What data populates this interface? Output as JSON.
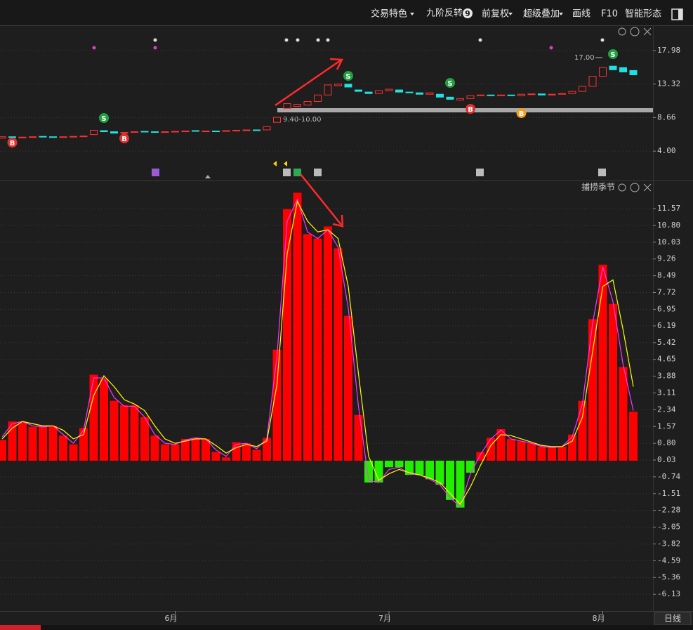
{
  "toolbar": {
    "items": [
      "交易特色",
      "九阶反转",
      "前复权",
      "超级叠加",
      "画线",
      "F10",
      "智能形态"
    ],
    "badge": "9"
  },
  "chart_data": [
    {
      "type": "candlestick",
      "open": [
        5.8,
        6.0,
        5.85,
        5.95,
        6.05,
        6.0,
        5.9,
        6.0,
        6.05,
        6.3,
        6.85,
        6.7,
        6.5,
        6.6,
        6.75,
        6.7,
        6.65,
        6.7,
        6.75,
        6.85,
        6.75,
        6.8,
        6.75,
        6.85,
        6.9,
        6.95,
        6.95,
        8.0,
        9.9,
        10.2,
        10.4,
        10.9,
        11.8,
        13.1,
        13.3,
        12.5,
        12.2,
        12.0,
        12.4,
        12.5,
        12.2,
        12.1,
        11.9,
        11.9,
        11.5,
        11.1,
        11.3,
        11.7,
        11.8,
        11.7,
        11.8,
        11.7,
        11.9,
        11.95,
        11.8,
        11.9,
        12.0,
        12.3,
        13.0,
        14.4,
        15.8,
        15.6,
        15.2
      ],
      "close": [
        6.0,
        5.9,
        5.95,
        6.0,
        6.0,
        5.95,
        6.0,
        6.05,
        6.1,
        6.9,
        6.7,
        6.5,
        6.6,
        6.7,
        6.7,
        6.65,
        6.7,
        6.75,
        6.8,
        6.8,
        6.8,
        6.75,
        6.85,
        6.9,
        6.95,
        6.9,
        7.4,
        8.7,
        10.6,
        10.5,
        10.9,
        11.8,
        13.2,
        13.3,
        12.9,
        12.3,
        12.0,
        12.4,
        12.6,
        12.2,
        12.1,
        11.9,
        12.1,
        11.5,
        11.2,
        11.3,
        11.7,
        11.8,
        11.7,
        11.8,
        11.7,
        11.9,
        11.95,
        11.8,
        11.9,
        12.0,
        12.3,
        13.0,
        14.4,
        15.6,
        15.3,
        15.0,
        14.6
      ],
      "up_color": "#ff3030",
      "down_color": "#22e0e0",
      "ylim": [
        0.12,
        21.38
      ],
      "yticks": [
        17.98,
        13.32,
        8.66,
        {
          "value": 4,
          "label": "4.00"
        }
      ],
      "grid": true,
      "annotations": [
        "17.00",
        "9.40-10.00"
      ],
      "signals": [
        "B",
        "S",
        "B",
        "S",
        "S",
        "B",
        "B",
        "S"
      ]
    },
    {
      "type": "bar",
      "title": "捕捞季节",
      "categories": [
        null,
        null,
        null,
        null,
        null,
        null,
        null,
        null,
        null,
        null,
        null,
        null,
        null,
        null,
        null,
        null,
        null,
        "6月",
        null,
        null,
        null,
        null,
        null,
        null,
        null,
        null,
        null,
        null,
        null,
        null,
        null,
        null,
        null,
        null,
        null,
        null,
        null,
        null,
        "7月",
        null,
        null,
        null,
        null,
        null,
        null,
        null,
        null,
        null,
        null,
        null,
        null,
        null,
        null,
        null,
        null,
        null,
        null,
        null,
        null,
        "8月",
        null,
        null,
        null
      ],
      "values": [
        0.95,
        1.8,
        1.8,
        1.55,
        1.6,
        1.6,
        1.15,
        0.75,
        1.5,
        3.95,
        3.75,
        2.75,
        2.55,
        2.55,
        2.0,
        1.15,
        0.75,
        0.75,
        1.0,
        1.05,
        1.0,
        0.4,
        0.15,
        0.85,
        0.8,
        0.5,
        1.05,
        5.1,
        11.55,
        12.3,
        10.4,
        10.2,
        10.75,
        9.75,
        6.65,
        2.1,
        -1.0,
        -1.0,
        -0.3,
        -0.3,
        -0.65,
        -0.65,
        -0.85,
        -1.1,
        -1.8,
        -2.15,
        -0.55,
        0.4,
        1.05,
        1.45,
        1.0,
        0.9,
        0.8,
        0.65,
        0.6,
        0.65,
        1.2,
        2.75,
        6.5,
        9.0,
        7.2,
        4.3,
        2.25
      ],
      "positive_color": "#ff0000",
      "negative_color": "#22ee00",
      "series": [
        {
          "color": "#ff33ff",
          "values": [
            1.1,
            1.7,
            1.8,
            1.6,
            1.55,
            1.6,
            1.2,
            0.8,
            1.4,
            3.8,
            3.8,
            2.9,
            2.5,
            2.5,
            2.0,
            1.2,
            0.8,
            0.75,
            0.95,
            1.05,
            1.0,
            0.5,
            0.2,
            0.75,
            0.8,
            0.55,
            1.0,
            4.8,
            11.0,
            12.0,
            10.5,
            10.2,
            10.6,
            9.8,
            7.0,
            2.5,
            -0.9,
            -1.0,
            -0.4,
            -0.3,
            -0.6,
            -0.65,
            -0.85,
            -1.1,
            -1.7,
            -2.1,
            -0.6,
            0.3,
            1.0,
            1.4,
            1.0,
            0.9,
            0.8,
            0.65,
            0.6,
            0.65,
            1.1,
            2.6,
            6.3,
            8.9,
            7.3,
            4.4,
            2.3
          ]
        },
        {
          "color": "#ffff00",
          "values": [
            1.0,
            1.5,
            1.8,
            1.7,
            1.6,
            1.6,
            1.4,
            1.0,
            1.2,
            3.0,
            3.9,
            3.4,
            2.8,
            2.6,
            2.3,
            1.6,
            1.0,
            0.8,
            0.9,
            1.0,
            1.0,
            0.7,
            0.35,
            0.6,
            0.75,
            0.65,
            0.9,
            3.5,
            9.5,
            11.9,
            11.0,
            10.5,
            10.6,
            10.2,
            8.0,
            4.0,
            0.2,
            -0.9,
            -0.6,
            -0.4,
            -0.55,
            -0.65,
            -0.8,
            -1.0,
            -1.5,
            -2.0,
            -1.2,
            -0.2,
            0.7,
            1.2,
            1.15,
            1.0,
            0.85,
            0.7,
            0.65,
            0.65,
            0.9,
            2.0,
            5.0,
            8.0,
            8.3,
            6.0,
            3.4
          ]
        }
      ],
      "ylim": [
        -6.9,
        12.83
      ],
      "yticks": [
        11.57,
        {
          "value": 10.8,
          "label": "10.80"
        },
        10.03,
        9.26,
        8.49,
        7.72,
        6.95,
        6.19,
        5.42,
        4.65,
        3.88,
        3.11,
        2.34,
        1.57,
        {
          "value": 0.8,
          "label": "0.80"
        },
        0.03,
        -0.74,
        -1.51,
        -2.28,
        -3.05,
        -3.82,
        -4.59,
        -5.36,
        -6.13
      ],
      "grid": true
    }
  ],
  "footer": {
    "period": "日线"
  }
}
